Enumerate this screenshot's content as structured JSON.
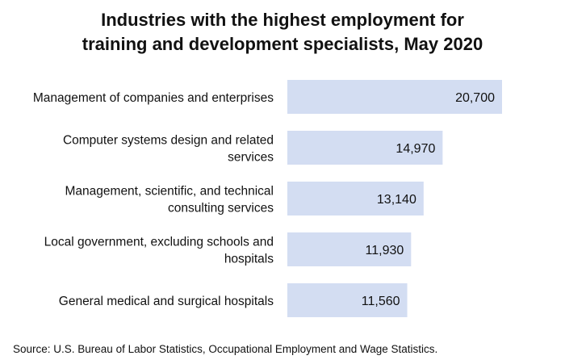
{
  "chart_data": {
    "type": "bar",
    "orientation": "horizontal",
    "title_lines": [
      "Industries with the highest employment for",
      "training and development specialists, May 2020"
    ],
    "categories": [
      [
        "Management of companies and enterprises"
      ],
      [
        "Computer systems design and related",
        "services"
      ],
      [
        "Management, scientific, and technical",
        "consulting services"
      ],
      [
        "Local government, excluding schools and",
        "hospitals"
      ],
      [
        "General medical and surgical hospitals"
      ]
    ],
    "values": [
      20700,
      14970,
      13140,
      11930,
      11560
    ],
    "value_labels": [
      "20,700",
      "14,970",
      "13,140",
      "11,930",
      "11,560"
    ],
    "xlim": [
      0,
      20700
    ],
    "bar_color": "#d3ddf2",
    "grid": false,
    "legend": "none"
  },
  "source": "Source: U.S. Bureau of Labor Statistics, Occupational Employment and Wage Statistics."
}
